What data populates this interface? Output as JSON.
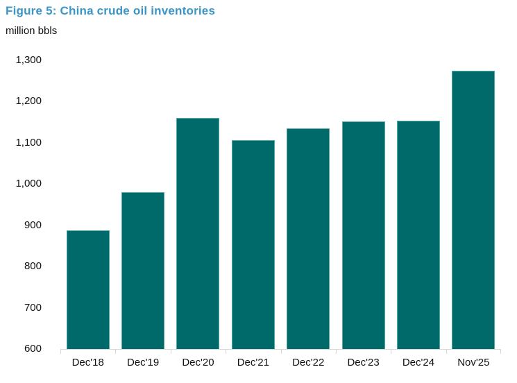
{
  "figure": {
    "title": "Figure 5: China crude oil inventories",
    "units_label": "million bbls"
  },
  "colors": {
    "title_text": "#3a96c8",
    "bar_fill": "#006a6a",
    "bar_border": "#53a6a6",
    "axis_line": "#d7d7d7",
    "tick_label_text": "#111111"
  },
  "chart_data": {
    "type": "bar",
    "title": "Figure 5: China crude oil inventories",
    "xlabel": "",
    "ylabel": "million bbls",
    "categories": [
      "Dec'18",
      "Dec'19",
      "Dec'20",
      "Dec'21",
      "Dec'22",
      "Dec'23",
      "Dec'24",
      "Nov'25"
    ],
    "values": [
      888,
      980,
      1160,
      1106,
      1135,
      1152,
      1154,
      1274
    ],
    "ylim": [
      600,
      1300
    ],
    "ytick_interval": 100,
    "ytick_labels": [
      "600",
      "700",
      "800",
      "900",
      "1,000",
      "1,100",
      "1,200",
      "1,300"
    ],
    "grid": false,
    "legend_position": "none"
  }
}
